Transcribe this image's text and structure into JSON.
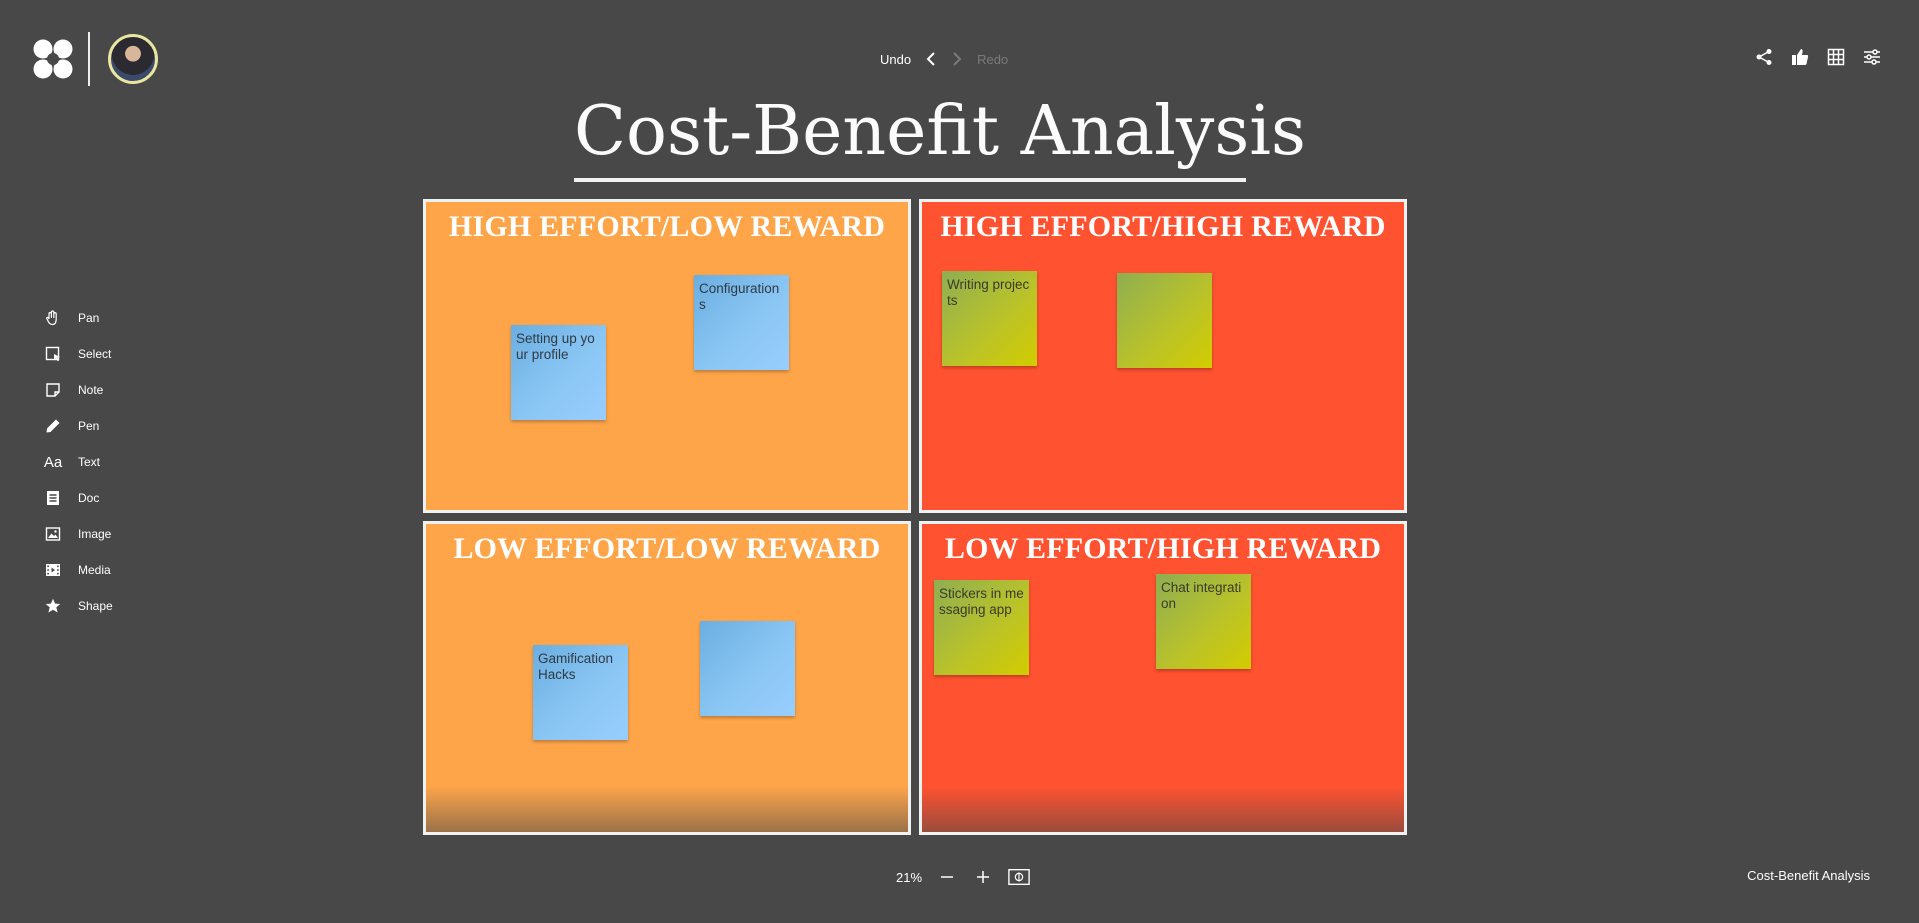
{
  "header": {
    "undo_label": "Undo",
    "redo_label": "Redo"
  },
  "toolbar": {
    "items": [
      {
        "label": "Pan",
        "icon": "hand-icon"
      },
      {
        "label": "Select",
        "icon": "select-icon"
      },
      {
        "label": "Note",
        "icon": "note-icon"
      },
      {
        "label": "Pen",
        "icon": "pen-icon"
      },
      {
        "label": "Text",
        "icon": "text-icon"
      },
      {
        "label": "Doc",
        "icon": "doc-icon"
      },
      {
        "label": "Image",
        "icon": "image-icon"
      },
      {
        "label": "Media",
        "icon": "media-icon"
      },
      {
        "label": "Shape",
        "icon": "star-icon"
      }
    ]
  },
  "board": {
    "title": "Cost-Benefit Analysis",
    "quadrants": [
      {
        "title": "HIGH EFFORT/LOW REWARD",
        "color": "#fea54a",
        "notes": [
          "Setting up your profile",
          "Configurations"
        ]
      },
      {
        "title": "HIGH EFFORT/HIGH REWARD",
        "color": "#ff5230",
        "notes": [
          "Writing projects",
          ""
        ]
      },
      {
        "title": "LOW EFFORT/LOW REWARD",
        "color": "#fea54a",
        "notes": [
          "Gamification Hacks",
          ""
        ]
      },
      {
        "title": "LOW EFFORT/HIGH REWARD",
        "color": "#ff5230",
        "notes": [
          "Stickers in messaging app",
          "Chat integration"
        ]
      }
    ]
  },
  "footer": {
    "zoom": "21%",
    "board_name": "Cost-Benefit Analysis"
  },
  "colors": {
    "background": "#484848",
    "orange": "#fea54a",
    "red": "#ff5230",
    "note_blue": "#8ac6f4",
    "note_green": "#b9c22a"
  }
}
